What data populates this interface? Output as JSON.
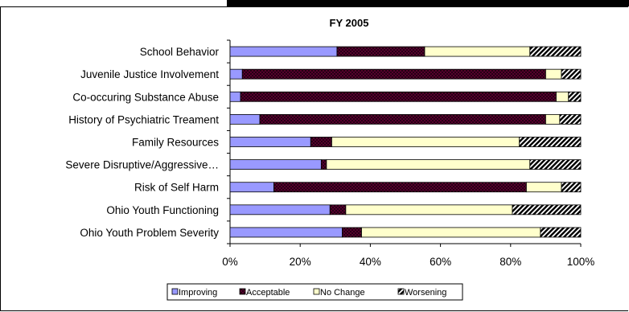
{
  "chart_data": {
    "type": "bar",
    "orientation": "horizontal",
    "stacked": "percent",
    "title": "FY 2005",
    "xlabel": "",
    "ylabel": "",
    "categories": [
      "School Behavior",
      "Juvenile Justice Involvement",
      "Co-occuring Substance Abuse",
      "History of Psychiatric Treament",
      "Family Resources",
      "Severe Disruptive/Aggressive…",
      "Risk of Self Harm",
      "Ohio Youth Functioning",
      "Ohio Youth Problem Severity"
    ],
    "series": [
      {
        "name": "Improving",
        "color": "#9999ff",
        "pattern": "solid",
        "values": [
          30.5,
          3.5,
          3,
          8.5,
          23,
          26,
          12.5,
          28.5,
          32
        ]
      },
      {
        "name": "Acceptable",
        "color": "#660033",
        "pattern": "crosshatch",
        "values": [
          25,
          86.5,
          90,
          81.5,
          6,
          1.5,
          72,
          4.5,
          5.5
        ]
      },
      {
        "name": "No Change",
        "color": "#ffffcc",
        "pattern": "solid",
        "values": [
          30,
          4.5,
          3.5,
          4,
          53.5,
          58,
          10,
          47.5,
          51
        ]
      },
      {
        "name": "Worsening",
        "color": "#000000",
        "pattern": "diagonal-stripes",
        "values": [
          14.5,
          5.5,
          3.5,
          6,
          17.5,
          14.5,
          5.5,
          19.5,
          11.5
        ]
      }
    ],
    "xlim": [
      0,
      100
    ],
    "xticks": [
      "0%",
      "20%",
      "40%",
      "60%",
      "80%",
      "100%"
    ],
    "legend_position": "bottom",
    "grid": false
  }
}
